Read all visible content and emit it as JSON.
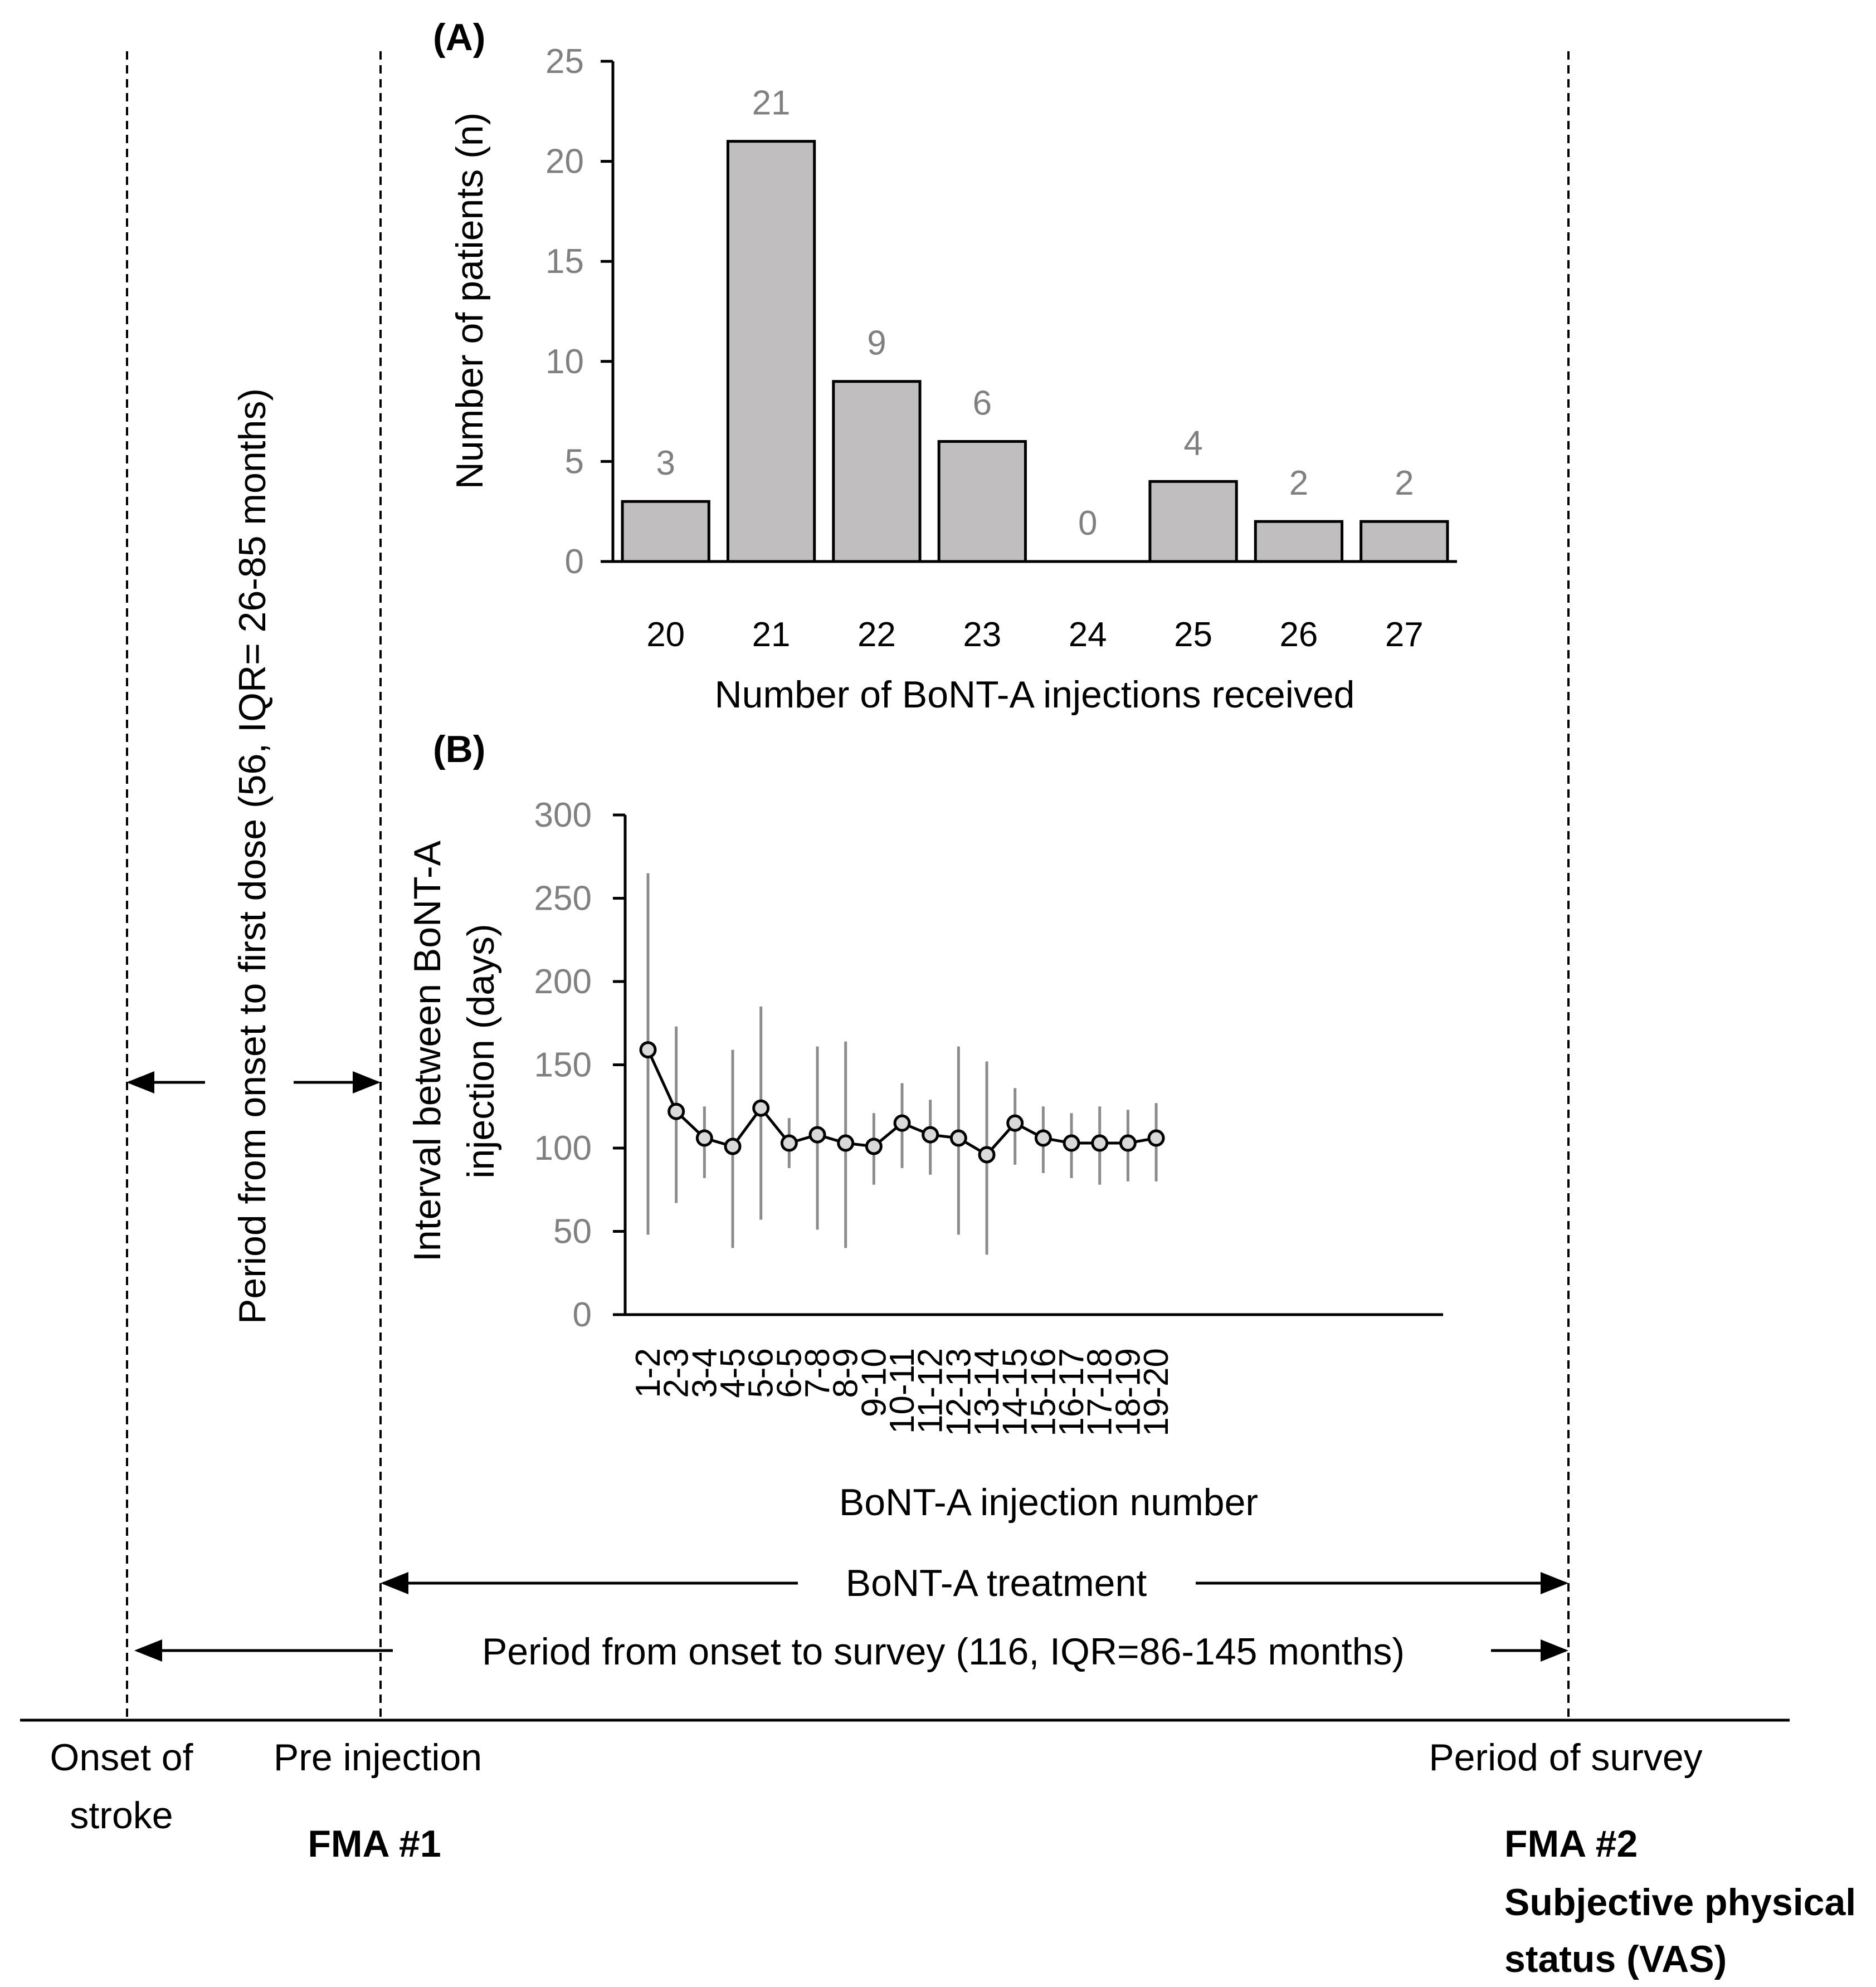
{
  "chart_data": [
    {
      "type": "bar",
      "panel": "(A)",
      "categories": [
        "20",
        "21",
        "22",
        "23",
        "24",
        "25",
        "26",
        "27"
      ],
      "values": [
        3,
        21,
        9,
        6,
        0,
        4,
        2,
        2
      ],
      "data_labels": [
        "3",
        "21",
        "9",
        "6",
        "0",
        "4",
        "2",
        "2"
      ],
      "xlabel": "Number of BoNT-A injections received",
      "ylabel": "Number of patients (n)",
      "ylim": [
        0,
        25
      ],
      "yticks": [
        0,
        5,
        10,
        15,
        20,
        25
      ],
      "colors": {
        "bar_fill": "#c0bebe",
        "bar_stroke": "#000000",
        "tick_text": "#808080"
      }
    },
    {
      "type": "line",
      "panel": "(B)",
      "categories": [
        "1-2",
        "2-3",
        "3-4",
        "4-5",
        "5-6",
        "6-5",
        "7-8",
        "8-9",
        "9-10",
        "10-11",
        "11-12",
        "12-13",
        "13-14",
        "14-15",
        "15-16",
        "16-17",
        "17-18",
        "18-19",
        "19-20"
      ],
      "values": [
        159,
        122,
        106,
        101,
        124,
        103,
        108,
        103,
        101,
        115,
        108,
        106,
        96,
        115,
        106,
        103,
        103,
        103,
        106
      ],
      "error_low": [
        48,
        67,
        82,
        40,
        57,
        88,
        51,
        40,
        78,
        88,
        84,
        48,
        36,
        90,
        85,
        82,
        78,
        80,
        80
      ],
      "error_high": [
        265,
        173,
        125,
        159,
        185,
        118,
        161,
        164,
        121,
        139,
        129,
        161,
        152,
        136,
        125,
        121,
        125,
        123,
        127
      ],
      "xlabel": "BoNT-A injection number",
      "ylabel_lines": [
        "Interval between BoNT-A",
        "injection (days)"
      ],
      "ylim": [
        0,
        300
      ],
      "yticks": [
        0,
        50,
        100,
        150,
        200,
        250,
        300
      ],
      "colors": {
        "line": "#000000",
        "marker_fill": "#d9d9d9",
        "error_bar": "#8c8c8c"
      }
    }
  ],
  "timeline": {
    "vertical_label": "Period from onset to first dose (56, IQR= 26-85 months)",
    "treatment_label": "BoNT-A treatment",
    "survey_period_label": "Period from onset to survey (116, IQR=86-145 months)",
    "onset_label_lines": [
      "Onset of",
      "stroke"
    ],
    "pre_injection_label": "Pre injection",
    "fma1_label": "FMA #1",
    "survey_label": "Period of survey",
    "fma2_label": "FMA #2",
    "vas_label_lines": [
      "Subjective physical",
      "status (VAS)"
    ]
  }
}
